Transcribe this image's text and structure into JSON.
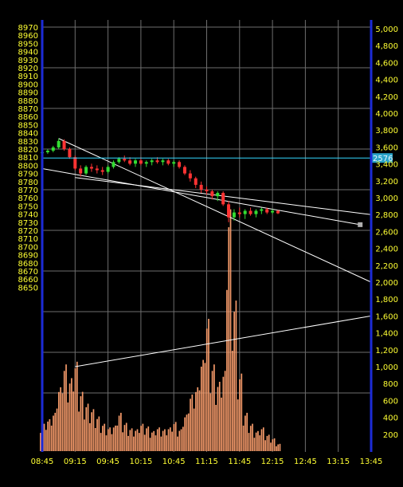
{
  "colors": {
    "background": "#000000",
    "grid": "#6e6e6e",
    "axis_border": "#1c2bd6",
    "left_label": "#ffff33",
    "right_label": "#ffff33",
    "time_label": "#ffff33",
    "up_candle": "#33dd33",
    "down_candle": "#ff3333",
    "volume": "#f59a6a",
    "trendline": "#ffffff",
    "marker_line": "#33d7ff",
    "marker_box": "#2aa3c9",
    "marker_text": "#e6f7ff",
    "end_marker": "#b0b0b0"
  },
  "chart_data": {
    "type": "candlestick",
    "title": "",
    "xlabel": "",
    "ylabel": "",
    "grid": true,
    "x_ticks": [
      "08:45",
      "09:15",
      "09:45",
      "10:15",
      "10:45",
      "11:15",
      "11:45",
      "12:15",
      "12:45",
      "13:15",
      "13:45"
    ],
    "price_axis": {
      "min": 8640,
      "max": 8970,
      "step": 10,
      "ticks": [
        "8650",
        "8660",
        "8670",
        "8680",
        "8690",
        "8700",
        "8710",
        "8720",
        "8730",
        "8740",
        "8750",
        "8760",
        "8770",
        "8780",
        "8790",
        "8800",
        "8810",
        "8820",
        "8830",
        "8840",
        "8850",
        "8860",
        "8870",
        "8880",
        "8890",
        "8900",
        "8910",
        "8920",
        "8930",
        "8940",
        "8950",
        "8960",
        "8970"
      ]
    },
    "volume_axis": {
      "min": 0,
      "max": 5100,
      "ticks": [
        {
          "value": 200,
          "label": "200"
        },
        {
          "value": 400,
          "label": "400"
        },
        {
          "value": 600,
          "label": "600"
        },
        {
          "value": 800,
          "label": "800"
        },
        {
          "value": 1000,
          "label": "1,000"
        },
        {
          "value": 1200,
          "label": "1,200"
        },
        {
          "value": 1400,
          "label": "1,400"
        },
        {
          "value": 1600,
          "label": "1,600"
        },
        {
          "value": 1800,
          "label": "1,800"
        },
        {
          "value": 2000,
          "label": "2,000"
        },
        {
          "value": 2200,
          "label": "2,200"
        },
        {
          "value": 2400,
          "label": "2,400"
        },
        {
          "value": 2600,
          "label": "2,600"
        },
        {
          "value": 2800,
          "label": "2,800"
        },
        {
          "value": 3000,
          "label": "3,000"
        },
        {
          "value": 3200,
          "label": "3,200"
        },
        {
          "value": 3400,
          "label": "3,400"
        },
        {
          "value": 3600,
          "label": "3,600"
        },
        {
          "value": 3800,
          "label": "3,800"
        },
        {
          "value": 4000,
          "label": "4,000"
        },
        {
          "value": 4200,
          "label": "4,200"
        },
        {
          "value": 4400,
          "label": "4,400"
        },
        {
          "value": 4600,
          "label": "4,600"
        },
        {
          "value": 4800,
          "label": "4,800"
        },
        {
          "value": 5000,
          "label": "5,000"
        }
      ]
    },
    "price_marker": {
      "price": 8809,
      "label": "2576"
    },
    "candles": [
      {
        "t": "08:45",
        "o": 8815,
        "h": 8818,
        "l": 8812,
        "c": 8816
      },
      {
        "t": "08:50",
        "o": 8816,
        "h": 8820,
        "l": 8814,
        "c": 8818
      },
      {
        "t": "08:55",
        "o": 8818,
        "h": 8824,
        "l": 8816,
        "c": 8822
      },
      {
        "t": "09:00",
        "o": 8822,
        "h": 8833,
        "l": 8820,
        "c": 8830
      },
      {
        "t": "09:05",
        "o": 8830,
        "h": 8832,
        "l": 8818,
        "c": 8820
      },
      {
        "t": "09:10",
        "o": 8820,
        "h": 8822,
        "l": 8808,
        "c": 8810
      },
      {
        "t": "09:15",
        "o": 8810,
        "h": 8812,
        "l": 8794,
        "c": 8796
      },
      {
        "t": "09:20",
        "o": 8796,
        "h": 8800,
        "l": 8786,
        "c": 8790
      },
      {
        "t": "09:25",
        "o": 8790,
        "h": 8800,
        "l": 8788,
        "c": 8798
      },
      {
        "t": "09:30",
        "o": 8798,
        "h": 8802,
        "l": 8792,
        "c": 8796
      },
      {
        "t": "09:35",
        "o": 8796,
        "h": 8800,
        "l": 8790,
        "c": 8794
      },
      {
        "t": "09:40",
        "o": 8794,
        "h": 8798,
        "l": 8788,
        "c": 8792
      },
      {
        "t": "09:45",
        "o": 8792,
        "h": 8800,
        "l": 8790,
        "c": 8798
      },
      {
        "t": "09:50",
        "o": 8798,
        "h": 8806,
        "l": 8796,
        "c": 8804
      },
      {
        "t": "09:55",
        "o": 8804,
        "h": 8810,
        "l": 8802,
        "c": 8808
      },
      {
        "t": "10:00",
        "o": 8808,
        "h": 8812,
        "l": 8804,
        "c": 8806
      },
      {
        "t": "10:05",
        "o": 8806,
        "h": 8810,
        "l": 8800,
        "c": 8802
      },
      {
        "t": "10:10",
        "o": 8802,
        "h": 8808,
        "l": 8798,
        "c": 8806
      },
      {
        "t": "10:15",
        "o": 8806,
        "h": 8810,
        "l": 8800,
        "c": 8802
      },
      {
        "t": "10:20",
        "o": 8802,
        "h": 8806,
        "l": 8798,
        "c": 8804
      },
      {
        "t": "10:25",
        "o": 8804,
        "h": 8808,
        "l": 8800,
        "c": 8806
      },
      {
        "t": "10:30",
        "o": 8806,
        "h": 8810,
        "l": 8802,
        "c": 8804
      },
      {
        "t": "10:35",
        "o": 8804,
        "h": 8808,
        "l": 8800,
        "c": 8806
      },
      {
        "t": "10:40",
        "o": 8806,
        "h": 8808,
        "l": 8800,
        "c": 8802
      },
      {
        "t": "10:45",
        "o": 8802,
        "h": 8806,
        "l": 8798,
        "c": 8804
      },
      {
        "t": "10:50",
        "o": 8804,
        "h": 8806,
        "l": 8796,
        "c": 8798
      },
      {
        "t": "10:55",
        "o": 8798,
        "h": 8800,
        "l": 8788,
        "c": 8790
      },
      {
        "t": "11:00",
        "o": 8790,
        "h": 8794,
        "l": 8780,
        "c": 8784
      },
      {
        "t": "11:05",
        "o": 8784,
        "h": 8786,
        "l": 8772,
        "c": 8776
      },
      {
        "t": "11:10",
        "o": 8776,
        "h": 8780,
        "l": 8766,
        "c": 8770
      },
      {
        "t": "11:15",
        "o": 8770,
        "h": 8774,
        "l": 8764,
        "c": 8768
      },
      {
        "t": "11:20",
        "o": 8768,
        "h": 8770,
        "l": 8758,
        "c": 8762
      },
      {
        "t": "11:25",
        "o": 8762,
        "h": 8768,
        "l": 8756,
        "c": 8766
      },
      {
        "t": "11:30",
        "o": 8766,
        "h": 8768,
        "l": 8750,
        "c": 8752
      },
      {
        "t": "11:35",
        "o": 8752,
        "h": 8756,
        "l": 8730,
        "c": 8736
      },
      {
        "t": "11:40",
        "o": 8736,
        "h": 8746,
        "l": 8732,
        "c": 8742
      },
      {
        "t": "11:45",
        "o": 8742,
        "h": 8748,
        "l": 8736,
        "c": 8740
      },
      {
        "t": "11:50",
        "o": 8740,
        "h": 8746,
        "l": 8734,
        "c": 8744
      },
      {
        "t": "11:55",
        "o": 8744,
        "h": 8748,
        "l": 8738,
        "c": 8740
      },
      {
        "t": "12:00",
        "o": 8740,
        "h": 8746,
        "l": 8736,
        "c": 8744
      },
      {
        "t": "12:05",
        "o": 8744,
        "h": 8748,
        "l": 8740,
        "c": 8746
      },
      {
        "t": "12:10",
        "o": 8746,
        "h": 8748,
        "l": 8740,
        "c": 8742
      },
      {
        "t": "12:15",
        "o": 8742,
        "h": 8746,
        "l": 8740,
        "c": 8744
      },
      {
        "t": "12:20",
        "o": 8744,
        "h": 8745,
        "l": 8740,
        "c": 8741
      }
    ],
    "volumes": [
      {
        "t": "08:45",
        "v": 300
      },
      {
        "t": "08:50",
        "v": 350
      },
      {
        "t": "08:55",
        "v": 420
      },
      {
        "t": "09:00",
        "v": 700
      },
      {
        "t": "09:05",
        "v": 950
      },
      {
        "t": "09:10",
        "v": 800
      },
      {
        "t": "09:15",
        "v": 980
      },
      {
        "t": "09:20",
        "v": 650
      },
      {
        "t": "09:25",
        "v": 520
      },
      {
        "t": "09:30",
        "v": 460
      },
      {
        "t": "09:35",
        "v": 380
      },
      {
        "t": "09:40",
        "v": 300
      },
      {
        "t": "09:45",
        "v": 260
      },
      {
        "t": "09:50",
        "v": 280
      },
      {
        "t": "09:55",
        "v": 420
      },
      {
        "t": "10:00",
        "v": 310
      },
      {
        "t": "10:05",
        "v": 250
      },
      {
        "t": "10:10",
        "v": 240
      },
      {
        "t": "10:15",
        "v": 300
      },
      {
        "t": "10:20",
        "v": 270
      },
      {
        "t": "10:25",
        "v": 220
      },
      {
        "t": "10:30",
        "v": 260
      },
      {
        "t": "10:35",
        "v": 240
      },
      {
        "t": "10:40",
        "v": 260
      },
      {
        "t": "10:45",
        "v": 320
      },
      {
        "t": "10:50",
        "v": 240
      },
      {
        "t": "10:55",
        "v": 400
      },
      {
        "t": "11:00",
        "v": 620
      },
      {
        "t": "11:05",
        "v": 700
      },
      {
        "t": "11:10",
        "v": 1000
      },
      {
        "t": "11:15",
        "v": 1450
      },
      {
        "t": "11:20",
        "v": 950
      },
      {
        "t": "11:25",
        "v": 760
      },
      {
        "t": "11:30",
        "v": 880
      },
      {
        "t": "11:35",
        "v": 2650
      },
      {
        "t": "11:40",
        "v": 1650
      },
      {
        "t": "11:45",
        "v": 850
      },
      {
        "t": "11:50",
        "v": 420
      },
      {
        "t": "11:55",
        "v": 300
      },
      {
        "t": "12:00",
        "v": 220
      },
      {
        "t": "12:05",
        "v": 260
      },
      {
        "t": "12:10",
        "v": 180
      },
      {
        "t": "12:15",
        "v": 140
      },
      {
        "t": "12:20",
        "v": 80
      }
    ],
    "trendlines": [
      {
        "t1": "09:00",
        "p1": 8833,
        "t2": "13:45",
        "p2": "@2000"
      },
      {
        "t1": "08:45",
        "p1": 8796,
        "t2": "13:35",
        "p2": 8727
      },
      {
        "t1": "09:15",
        "p1": 8785,
        "t2": "13:45",
        "p2": "@2800"
      },
      {
        "t1": "09:15",
        "p1": "@1000",
        "t2": "13:45",
        "p2": "@1600"
      }
    ],
    "end_marker": {
      "t": "13:35",
      "p": 8727
    }
  }
}
